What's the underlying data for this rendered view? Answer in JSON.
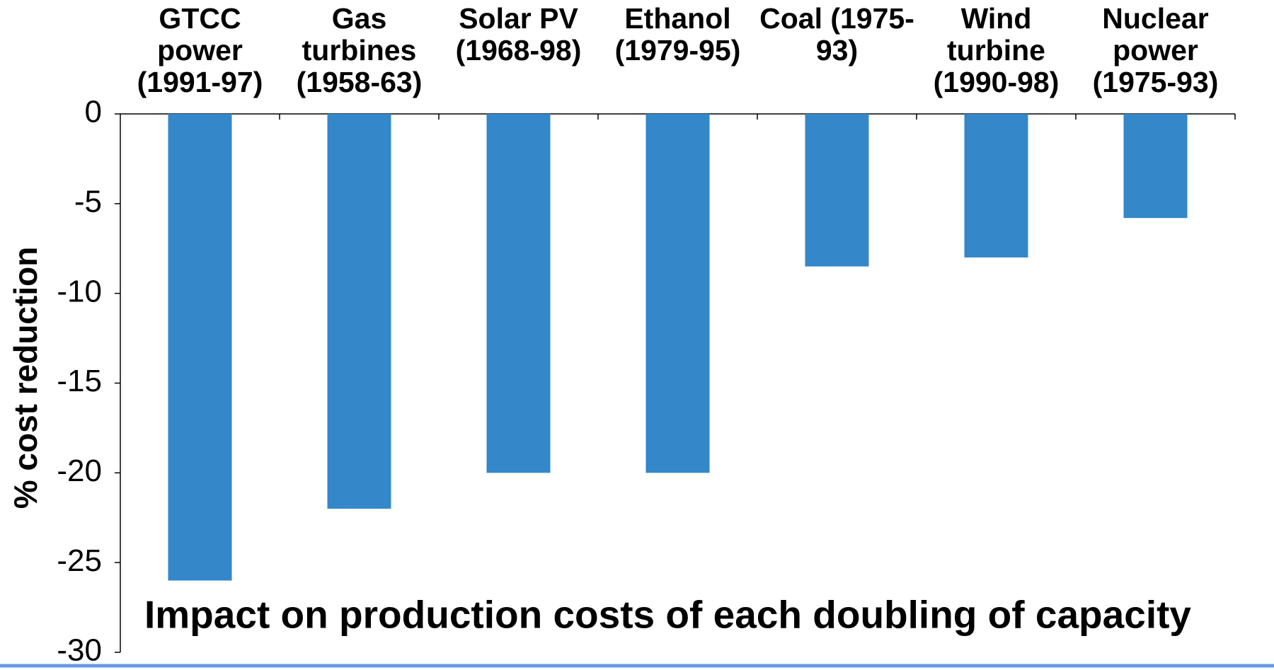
{
  "chart_data": {
    "type": "bar",
    "title": "Impact on production costs of each doubling of capacity",
    "y_label": "% cost reduction",
    "categories": [
      "GTCC power (1991-97)",
      "Gas turbines (1958-63)",
      "Solar PV (1968-98)",
      "Ethanol (1979-95)",
      "Coal (1975-93)",
      "Wind turbine (1990-98)",
      "Nuclear power (1975-93)"
    ],
    "values": [
      -26,
      -22,
      -20,
      -20,
      -8.5,
      -8,
      -5.8
    ],
    "color": "#3487c8",
    "ylim": [
      -30,
      0
    ],
    "yticks": [
      0,
      -5,
      -10,
      -15,
      -20,
      -25,
      -30
    ],
    "grid": false
  }
}
